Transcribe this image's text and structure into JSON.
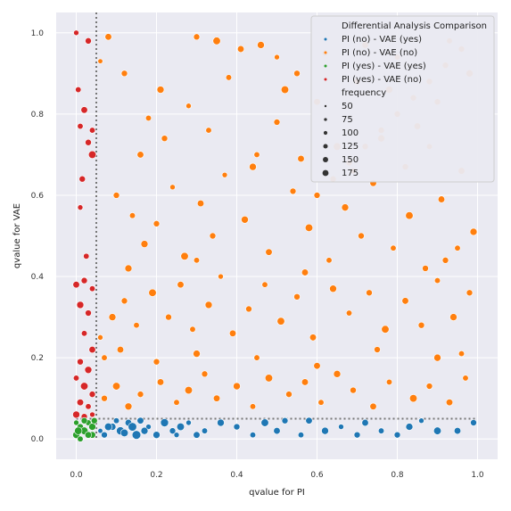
{
  "chart_data": {
    "type": "scatter",
    "xlabel": "qvalue for PI",
    "ylabel": "qvalue for VAE",
    "xlim": [
      -0.05,
      1.05
    ],
    "ylim": [
      -0.05,
      1.05
    ],
    "x_ticks": [
      "0.0",
      "0.2",
      "0.4",
      "0.6",
      "0.8",
      "1.0"
    ],
    "y_ticks": [
      "0.0",
      "0.2",
      "0.4",
      "0.6",
      "0.8",
      "1.0"
    ],
    "threshold": 0.05,
    "threshold_lines": "dotted, x = 0.05 and y = 0.05",
    "grid": true,
    "background": "#eaeaf2",
    "legend": {
      "placement": "top-right",
      "title": "Differential Analysis Comparison",
      "series_labels": [
        "PI (no)  - VAE (yes)",
        "PI (no)  - VAE (no)",
        "PI (yes) - VAE (yes)",
        "PI (yes) - VAE (no)"
      ],
      "size_title": "frequency",
      "size_labels": [
        "50",
        "75",
        "100",
        "125",
        "150",
        "175"
      ]
    },
    "series": [
      {
        "name": "PI (no)  - VAE (yes)",
        "color": "#1f77b4",
        "points": [
          [
            0.07,
            0.01,
            120
          ],
          [
            0.09,
            0.03,
            140
          ],
          [
            0.11,
            0.02,
            160
          ],
          [
            0.13,
            0.04,
            130
          ],
          [
            0.15,
            0.01,
            175
          ],
          [
            0.06,
            0.02,
            90
          ],
          [
            0.1,
            0.045,
            110
          ],
          [
            0.12,
            0.015,
            150
          ],
          [
            0.14,
            0.03,
            170
          ],
          [
            0.16,
            0.045,
            130
          ],
          [
            0.18,
            0.03,
            100
          ],
          [
            0.2,
            0.01,
            140
          ],
          [
            0.22,
            0.04,
            160
          ],
          [
            0.24,
            0.02,
            120
          ],
          [
            0.26,
            0.03,
            150
          ],
          [
            0.28,
            0.04,
            100
          ],
          [
            0.3,
            0.01,
            130
          ],
          [
            0.32,
            0.02,
            110
          ],
          [
            0.36,
            0.04,
            140
          ],
          [
            0.4,
            0.03,
            120
          ],
          [
            0.44,
            0.01,
            110
          ],
          [
            0.47,
            0.04,
            150
          ],
          [
            0.5,
            0.02,
            130
          ],
          [
            0.52,
            0.045,
            120
          ],
          [
            0.56,
            0.01,
            110
          ],
          [
            0.58,
            0.045,
            130
          ],
          [
            0.62,
            0.02,
            140
          ],
          [
            0.66,
            0.03,
            100
          ],
          [
            0.7,
            0.01,
            120
          ],
          [
            0.72,
            0.04,
            130
          ],
          [
            0.76,
            0.02,
            110
          ],
          [
            0.8,
            0.01,
            120
          ],
          [
            0.83,
            0.03,
            140
          ],
          [
            0.86,
            0.045,
            100
          ],
          [
            0.9,
            0.02,
            150
          ],
          [
            0.95,
            0.02,
            130
          ],
          [
            0.99,
            0.04,
            120
          ],
          [
            0.08,
            0.03,
            150
          ],
          [
            0.17,
            0.02,
            140
          ],
          [
            0.25,
            0.01,
            100
          ]
        ]
      },
      {
        "name": "PI (no)  - VAE (no)",
        "color": "#ff7f0e",
        "points": [
          [
            0.06,
            0.93,
            90
          ],
          [
            0.08,
            0.99,
            130
          ],
          [
            0.12,
            0.9,
            120
          ],
          [
            0.18,
            0.79,
            110
          ],
          [
            0.21,
            0.86,
            140
          ],
          [
            0.28,
            0.82,
            100
          ],
          [
            0.3,
            0.99,
            120
          ],
          [
            0.35,
            0.98,
            150
          ],
          [
            0.38,
            0.89,
            110
          ],
          [
            0.41,
            0.96,
            130
          ],
          [
            0.46,
            0.97,
            140
          ],
          [
            0.5,
            0.94,
            100
          ],
          [
            0.52,
            0.86,
            150
          ],
          [
            0.55,
            0.9,
            120
          ],
          [
            0.6,
            0.83,
            130
          ],
          [
            0.62,
            0.95,
            110
          ],
          [
            0.65,
            0.72,
            150
          ],
          [
            0.7,
            0.88,
            120
          ],
          [
            0.72,
            0.97,
            130
          ],
          [
            0.78,
            0.86,
            140
          ],
          [
            0.8,
            0.94,
            110
          ],
          [
            0.85,
            0.77,
            130
          ],
          [
            0.9,
            0.83,
            120
          ],
          [
            0.93,
            0.98,
            110
          ],
          [
            0.98,
            0.9,
            140
          ],
          [
            0.1,
            0.6,
            120
          ],
          [
            0.14,
            0.55,
            110
          ],
          [
            0.17,
            0.48,
            140
          ],
          [
            0.2,
            0.53,
            120
          ],
          [
            0.24,
            0.62,
            100
          ],
          [
            0.27,
            0.45,
            150
          ],
          [
            0.31,
            0.58,
            130
          ],
          [
            0.34,
            0.5,
            120
          ],
          [
            0.37,
            0.65,
            100
          ],
          [
            0.42,
            0.54,
            140
          ],
          [
            0.45,
            0.7,
            110
          ],
          [
            0.48,
            0.46,
            130
          ],
          [
            0.54,
            0.61,
            120
          ],
          [
            0.58,
            0.52,
            150
          ],
          [
            0.63,
            0.44,
            110
          ],
          [
            0.67,
            0.57,
            140
          ],
          [
            0.71,
            0.5,
            120
          ],
          [
            0.74,
            0.63,
            130
          ],
          [
            0.79,
            0.47,
            110
          ],
          [
            0.83,
            0.55,
            150
          ],
          [
            0.87,
            0.42,
            120
          ],
          [
            0.91,
            0.59,
            130
          ],
          [
            0.95,
            0.47,
            110
          ],
          [
            0.99,
            0.51,
            140
          ],
          [
            0.06,
            0.25,
            100
          ],
          [
            0.09,
            0.3,
            140
          ],
          [
            0.12,
            0.34,
            120
          ],
          [
            0.15,
            0.28,
            110
          ],
          [
            0.19,
            0.36,
            150
          ],
          [
            0.23,
            0.3,
            120
          ],
          [
            0.26,
            0.38,
            130
          ],
          [
            0.29,
            0.27,
            110
          ],
          [
            0.33,
            0.33,
            140
          ],
          [
            0.36,
            0.4,
            100
          ],
          [
            0.39,
            0.26,
            130
          ],
          [
            0.43,
            0.32,
            120
          ],
          [
            0.47,
            0.38,
            110
          ],
          [
            0.51,
            0.29,
            150
          ],
          [
            0.55,
            0.35,
            120
          ],
          [
            0.59,
            0.25,
            130
          ],
          [
            0.64,
            0.37,
            140
          ],
          [
            0.68,
            0.31,
            110
          ],
          [
            0.73,
            0.36,
            120
          ],
          [
            0.77,
            0.27,
            150
          ],
          [
            0.82,
            0.34,
            130
          ],
          [
            0.86,
            0.28,
            120
          ],
          [
            0.9,
            0.39,
            110
          ],
          [
            0.94,
            0.3,
            140
          ],
          [
            0.98,
            0.36,
            120
          ],
          [
            0.07,
            0.1,
            120
          ],
          [
            0.1,
            0.13,
            150
          ],
          [
            0.13,
            0.08,
            140
          ],
          [
            0.16,
            0.11,
            120
          ],
          [
            0.21,
            0.14,
            130
          ],
          [
            0.25,
            0.09,
            110
          ],
          [
            0.28,
            0.12,
            150
          ],
          [
            0.32,
            0.16,
            120
          ],
          [
            0.35,
            0.1,
            130
          ],
          [
            0.4,
            0.13,
            140
          ],
          [
            0.44,
            0.08,
            110
          ],
          [
            0.48,
            0.15,
            150
          ],
          [
            0.53,
            0.11,
            120
          ],
          [
            0.57,
            0.14,
            130
          ],
          [
            0.61,
            0.09,
            110
          ],
          [
            0.65,
            0.16,
            140
          ],
          [
            0.69,
            0.12,
            120
          ],
          [
            0.74,
            0.08,
            130
          ],
          [
            0.78,
            0.14,
            110
          ],
          [
            0.84,
            0.1,
            150
          ],
          [
            0.88,
            0.13,
            120
          ],
          [
            0.93,
            0.09,
            130
          ],
          [
            0.97,
            0.15,
            110
          ],
          [
            0.07,
            0.2,
            110
          ],
          [
            0.11,
            0.22,
            130
          ],
          [
            0.2,
            0.19,
            120
          ],
          [
            0.3,
            0.21,
            140
          ],
          [
            0.45,
            0.2,
            110
          ],
          [
            0.6,
            0.18,
            130
          ],
          [
            0.75,
            0.22,
            120
          ],
          [
            0.9,
            0.2,
            140
          ],
          [
            0.96,
            0.21,
            110
          ],
          [
            0.16,
            0.7,
            130
          ],
          [
            0.22,
            0.74,
            120
          ],
          [
            0.33,
            0.76,
            110
          ],
          [
            0.44,
            0.67,
            140
          ],
          [
            0.5,
            0.78,
            120
          ],
          [
            0.56,
            0.69,
            130
          ],
          [
            0.69,
            0.66,
            110
          ],
          [
            0.76,
            0.74,
            140
          ],
          [
            0.82,
            0.67,
            120
          ],
          [
            0.88,
            0.72,
            110
          ],
          [
            0.96,
            0.66,
            130
          ],
          [
            0.13,
            0.42,
            140
          ],
          [
            0.3,
            0.44,
            110
          ],
          [
            0.57,
            0.41,
            130
          ],
          [
            0.92,
            0.44,
            120
          ],
          [
            0.6,
            0.6,
            120
          ],
          [
            0.64,
            0.64,
            120
          ],
          [
            0.68,
            0.68,
            120
          ],
          [
            0.72,
            0.72,
            120
          ],
          [
            0.76,
            0.76,
            120
          ],
          [
            0.8,
            0.8,
            120
          ],
          [
            0.84,
            0.84,
            120
          ],
          [
            0.88,
            0.88,
            120
          ],
          [
            0.92,
            0.92,
            120
          ],
          [
            0.96,
            0.96,
            120
          ]
        ]
      },
      {
        "name": "PI (yes) - VAE (yes)",
        "color": "#2ca02c",
        "points": [
          [
            0.0,
            0.01,
            140
          ],
          [
            0.01,
            0.03,
            120
          ],
          [
            0.02,
            0.02,
            150
          ],
          [
            0.03,
            0.04,
            110
          ],
          [
            0.04,
            0.01,
            130
          ],
          [
            0.0,
            0.04,
            100
          ],
          [
            0.02,
            0.045,
            120
          ],
          [
            0.04,
            0.03,
            140
          ],
          [
            0.01,
            0.0,
            110
          ],
          [
            0.03,
            0.01,
            130
          ],
          [
            0.045,
            0.045,
            120
          ],
          [
            0.005,
            0.02,
            150
          ]
        ]
      },
      {
        "name": "PI (yes) - VAE (no)",
        "color": "#d62728",
        "points": [
          [
            0.0,
            1.0,
            100
          ],
          [
            0.03,
            0.98,
            120
          ],
          [
            0.01,
            0.77,
            110
          ],
          [
            0.02,
            0.81,
            130
          ],
          [
            0.04,
            0.7,
            150
          ],
          [
            0.03,
            0.73,
            120
          ],
          [
            0.04,
            0.76,
            110
          ],
          [
            0.01,
            0.57,
            100
          ],
          [
            0.0,
            0.38,
            130
          ],
          [
            0.02,
            0.39,
            120
          ],
          [
            0.04,
            0.37,
            110
          ],
          [
            0.01,
            0.33,
            140
          ],
          [
            0.03,
            0.31,
            120
          ],
          [
            0.02,
            0.26,
            110
          ],
          [
            0.04,
            0.22,
            130
          ],
          [
            0.01,
            0.19,
            120
          ],
          [
            0.03,
            0.17,
            140
          ],
          [
            0.0,
            0.15,
            110
          ],
          [
            0.02,
            0.13,
            150
          ],
          [
            0.04,
            0.11,
            120
          ],
          [
            0.01,
            0.09,
            130
          ],
          [
            0.03,
            0.08,
            110
          ],
          [
            0.0,
            0.06,
            140
          ],
          [
            0.02,
            0.055,
            120
          ],
          [
            0.04,
            0.06,
            100
          ],
          [
            0.005,
            0.86,
            110
          ],
          [
            0.015,
            0.64,
            120
          ],
          [
            0.025,
            0.45,
            110
          ]
        ]
      }
    ]
  }
}
